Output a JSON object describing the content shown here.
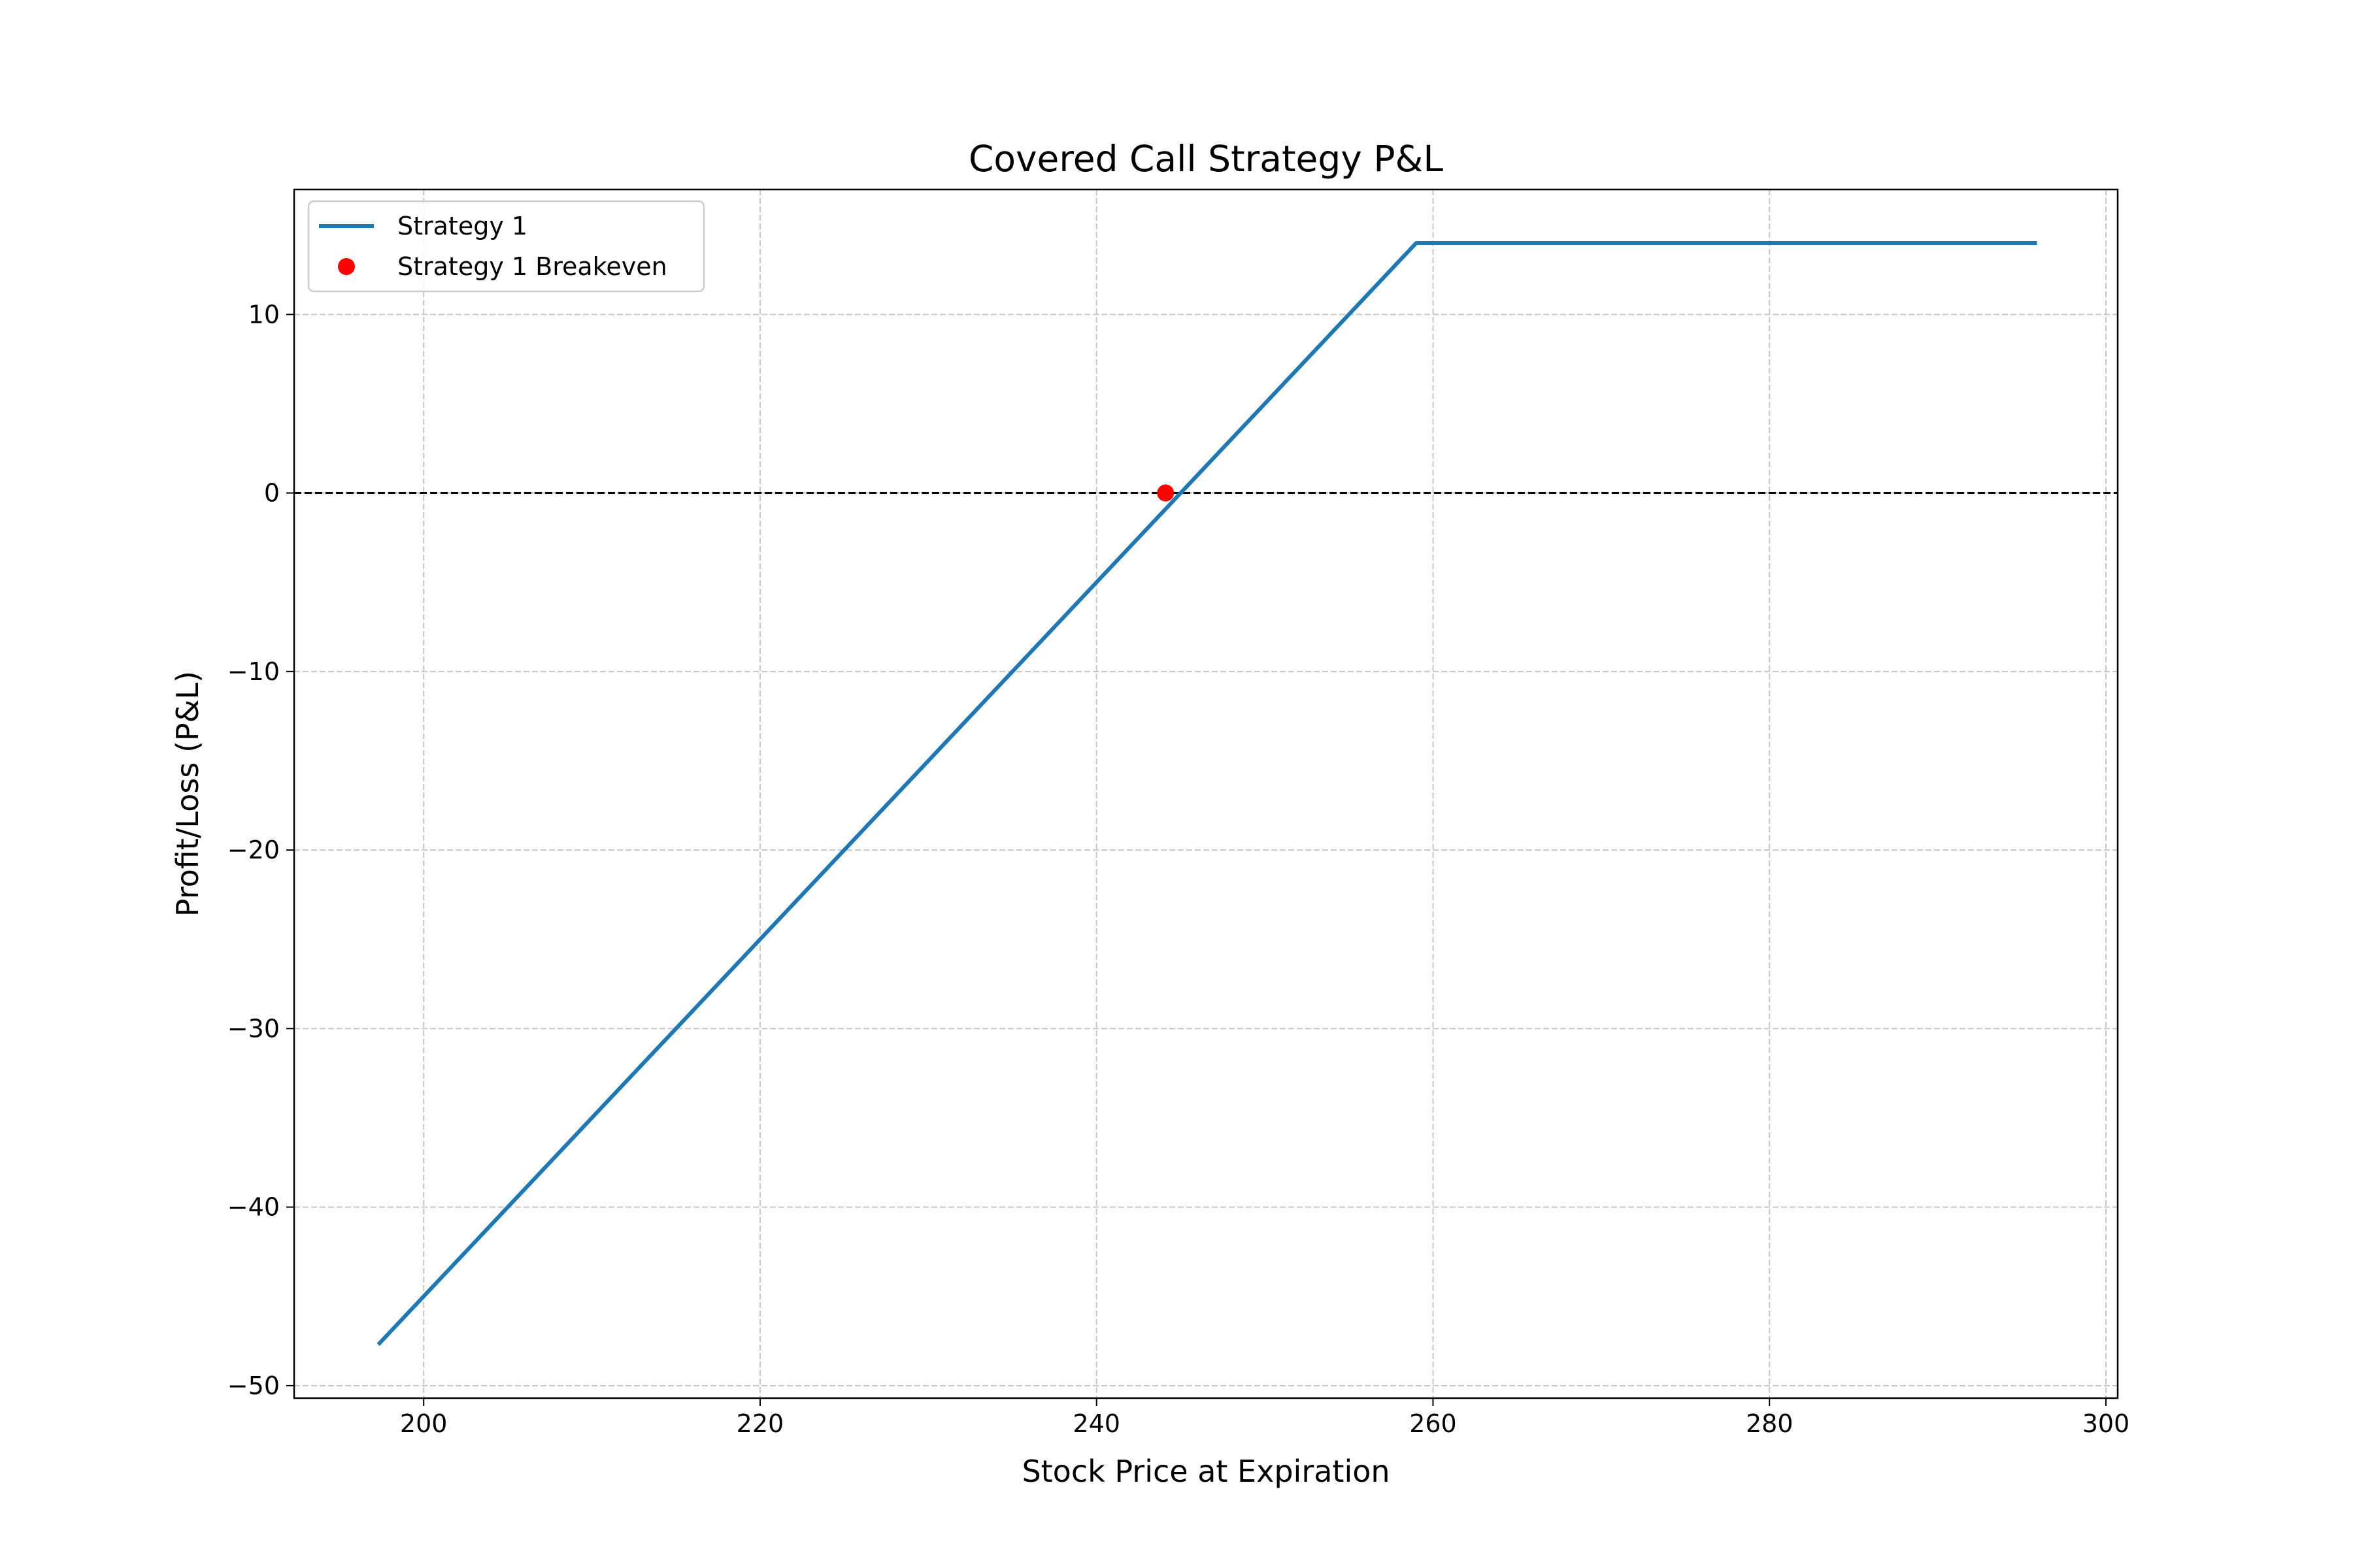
{
  "chart_data": {
    "type": "line",
    "title": "Covered Call Strategy P&L",
    "xlabel": "Stock Price at Expiration",
    "ylabel": "Profit/Loss (P&L)",
    "xlim": [
      192.3,
      300.7
    ],
    "ylim": [
      -50.7,
      17
    ],
    "x_ticks": [
      200,
      220,
      240,
      260,
      280,
      300
    ],
    "y_ticks": [
      10,
      0,
      -10,
      -20,
      -30,
      -40,
      -50
    ],
    "x_tick_labels": [
      "200",
      "220",
      "240",
      "260",
      "280",
      "300"
    ],
    "y_tick_labels": [
      "10",
      "0",
      "−10",
      "−20",
      "−30",
      "−40",
      "−50"
    ],
    "grid": true,
    "legend_position": "top-left",
    "series": [
      {
        "name": "Strategy 1",
        "kind": "line",
        "color": "#1f77b4",
        "x": [
          197.3,
          258.2,
          259.0,
          295.9
        ],
        "y": [
          -47.7,
          13.2,
          14.0,
          14.0
        ]
      },
      {
        "name": "Strategy 1 Breakeven",
        "kind": "scatter",
        "color": "#ff0000",
        "x": [
          244.1
        ],
        "y": [
          0
        ]
      }
    ],
    "reference_lines": [
      {
        "axis": "y",
        "value": 0,
        "style": "dashed",
        "color": "#000000"
      }
    ]
  }
}
